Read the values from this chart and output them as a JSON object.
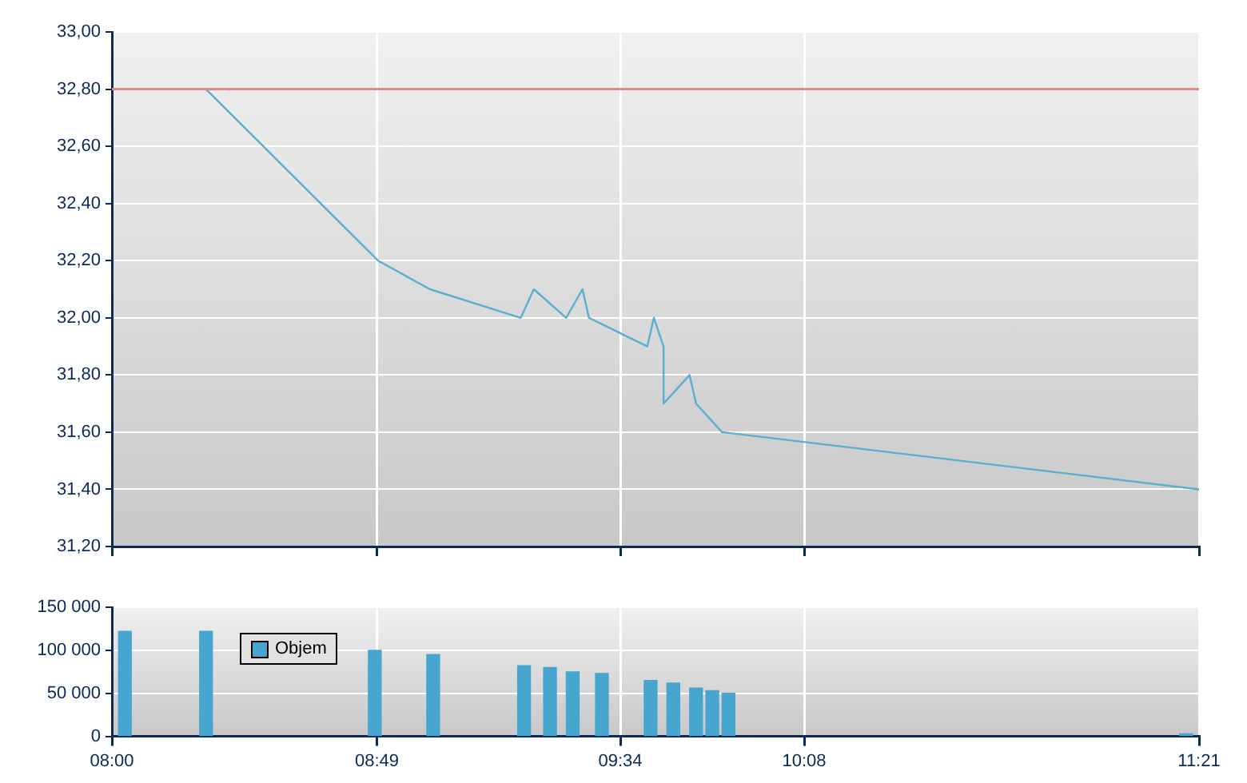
{
  "chart_data": [
    {
      "type": "line",
      "xlim": [
        8,
        11.35
      ],
      "xticks": [
        8,
        8.8167,
        9.5667,
        10.1333,
        11.35
      ],
      "ylim": [
        31.2,
        33
      ],
      "yticks": [
        {
          "value": 31.2,
          "label": "31,20"
        },
        {
          "value": 31.4,
          "label": "31,40"
        },
        {
          "value": 31.6,
          "label": "31,60"
        },
        {
          "value": 31.8,
          "label": "31,80"
        },
        {
          "value": 32,
          "label": "32,00"
        },
        {
          "value": 32.2,
          "label": "32,20"
        },
        {
          "value": 32.4,
          "label": "32,40"
        },
        {
          "value": 32.6,
          "label": "32,60"
        },
        {
          "value": 32.8,
          "label": "32,80"
        },
        {
          "value": 33,
          "label": "33,00"
        }
      ],
      "grid": true,
      "tick_labels": "y",
      "series": [
        {
          "color": "#5aaed0",
          "x": [
            8,
            8.29,
            8.82,
            8.98,
            9.26,
            9.3,
            9.4,
            9.45,
            9.47,
            9.65,
            9.67,
            9.7,
            9.7,
            9.78,
            9.8,
            9.88,
            11.35
          ],
          "values": [
            32.8,
            32.8,
            32.2,
            32.1,
            32.0,
            32.1,
            32.0,
            32.1,
            32.0,
            31.9,
            32.0,
            31.9,
            31.7,
            31.8,
            31.7,
            31.6,
            31.4
          ]
        }
      ],
      "ref_lines": [
        {
          "axis": "y",
          "value": 32.8,
          "color": "#e08a8a"
        }
      ]
    },
    {
      "type": "bar",
      "xlim": [
        8,
        11.35
      ],
      "xticks": [
        {
          "value": 8,
          "label": "08:00"
        },
        {
          "value": 8.8167,
          "label": "08:49"
        },
        {
          "value": 9.5667,
          "label": "09:34"
        },
        {
          "value": 10.1333,
          "label": "10:08"
        },
        {
          "value": 11.35,
          "label": "11:21"
        }
      ],
      "ylim": [
        0,
        150000
      ],
      "yticks": [
        {
          "value": 0,
          "label": "0"
        },
        {
          "value": 50000,
          "label": "50 000"
        },
        {
          "value": 100000,
          "label": "100 000"
        },
        {
          "value": 150000,
          "label": "150 000"
        }
      ],
      "grid": true,
      "legend": "top left",
      "series": [
        {
          "name": "Objem",
          "color": "#46a6cf",
          "x": [
            8.04,
            8.29,
            8.81,
            8.99,
            9.27,
            9.35,
            9.42,
            9.51,
            9.66,
            9.73,
            9.8,
            9.85,
            9.9,
            11.31
          ],
          "values": [
            122000,
            122000,
            100000,
            95000,
            82000,
            80000,
            75000,
            73000,
            65000,
            62000,
            56000,
            53000,
            50000,
            3000
          ]
        }
      ]
    }
  ]
}
